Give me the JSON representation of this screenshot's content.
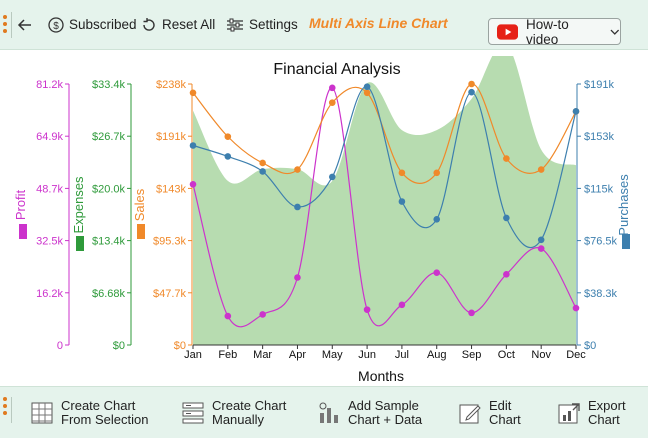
{
  "toolbar": {
    "subscribed_label": "Subscribed",
    "reset_label": "Reset All",
    "settings_label": "Settings",
    "chart_type_title": "Multi Axis Line Chart",
    "howto_label": "How-to video"
  },
  "bottom_toolbar": {
    "create_selection_line1": "Create Chart",
    "create_selection_line2": "From Selection",
    "create_manual_line1": "Create Chart",
    "create_manual_line2": "Manually",
    "add_sample_line1": "Add Sample",
    "add_sample_line2": "Chart + Data",
    "edit_line1": "Edit",
    "edit_line2": "Chart",
    "export_line1": "Export",
    "export_line2": "Chart"
  },
  "colors": {
    "accent": "#f0892a",
    "toolbar_bg": "#e5f3ec",
    "profit": "#cc33cc",
    "expenses": "#2e9a3a",
    "sales": "#f0892a",
    "purchases": "#3d7fae",
    "area_fill": "#b7dcb0"
  },
  "chart_data": {
    "type": "line",
    "title": "Financial Analysis",
    "xlabel": "Months",
    "categories": [
      "Jan",
      "Feb",
      "Mar",
      "Apr",
      "May",
      "Jun",
      "Jul",
      "Aug",
      "Sep",
      "Oct",
      "Nov",
      "Dec"
    ],
    "series": [
      {
        "name": "Profit",
        "axis": "profit",
        "style": "line",
        "values": [
          50000,
          9000,
          9500,
          21000,
          80000,
          11000,
          12500,
          22500,
          10000,
          22000,
          30000,
          11500
        ]
      },
      {
        "name": "Expenses",
        "axis": "expenses",
        "style": "area",
        "values": [
          30000,
          21000,
          22500,
          22500,
          21000,
          33500,
          27500,
          27500,
          31500,
          38500,
          25000,
          23000
        ]
      },
      {
        "name": "Sales",
        "axis": "sales",
        "style": "line",
        "values": [
          230000,
          190000,
          166000,
          160000,
          221000,
          230000,
          157000,
          157000,
          238000,
          170000,
          160000,
          213000
        ]
      },
      {
        "name": "Purchases",
        "axis": "purchases",
        "style": "line",
        "values": [
          146000,
          138000,
          127000,
          101000,
          123000,
          189000,
          105000,
          92000,
          185000,
          93000,
          77000,
          171000
        ]
      }
    ],
    "axes": [
      {
        "id": "profit",
        "label": "Profit",
        "ylim": [
          0,
          81200
        ],
        "ticks": [
          "0",
          "16.2k",
          "32.5k",
          "48.7k",
          "64.9k",
          "81.2k"
        ]
      },
      {
        "id": "expenses",
        "label": "Expenses",
        "ylim": [
          0,
          33400
        ],
        "ticks": [
          "$0",
          "$6.68k",
          "$13.4k",
          "$20.0k",
          "$26.7k",
          "$33.4k"
        ]
      },
      {
        "id": "sales",
        "label": "Sales",
        "ylim": [
          0,
          238000
        ],
        "ticks": [
          "$0",
          "$47.7k",
          "$95.3k",
          "$143k",
          "$191k",
          "$238k"
        ]
      },
      {
        "id": "purchases",
        "label": "Purchases",
        "ylim": [
          0,
          191000
        ],
        "ticks": [
          "$0",
          "$38.3k",
          "$76.5k",
          "$115k",
          "$153k",
          "$191k"
        ]
      }
    ],
    "grid": false
  }
}
